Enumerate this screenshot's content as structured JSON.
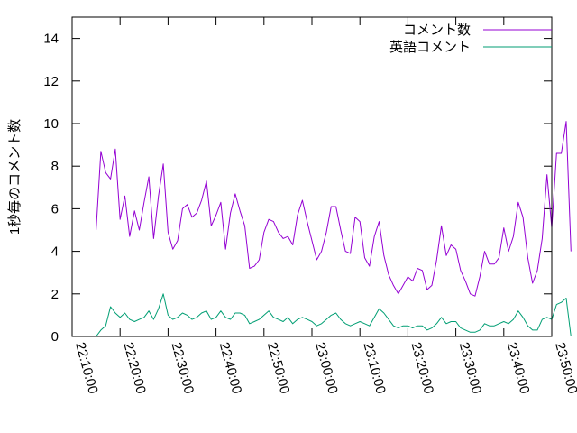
{
  "chart_data": {
    "type": "line",
    "title": "",
    "xlabel": "",
    "ylabel": "1秒毎のコメント数",
    "ylim": [
      0,
      15
    ],
    "xlim": [
      "22:10:00",
      "23:50:00"
    ],
    "yticks": [
      0,
      2,
      4,
      6,
      8,
      10,
      12,
      14
    ],
    "xticks": [
      "22:10:00",
      "22:20:00",
      "22:30:00",
      "22:40:00",
      "22:50:00",
      "23:00:00",
      "23:10:00",
      "23:20:00",
      "23:30:00",
      "23:40:00",
      "23:50:00"
    ],
    "grid": false,
    "legend_position": "top-right",
    "x_interval": "1 minute",
    "series": [
      {
        "name": "コメント数",
        "color": "#9400d3",
        "x_start": "22:15:00",
        "values": [
          5.0,
          8.7,
          7.7,
          7.4,
          8.8,
          5.5,
          6.6,
          4.7,
          5.9,
          5.0,
          6.3,
          7.5,
          4.6,
          6.6,
          8.1,
          4.9,
          4.1,
          4.5,
          6.0,
          6.2,
          5.6,
          5.8,
          6.4,
          7.3,
          5.2,
          5.7,
          6.3,
          4.1,
          5.8,
          6.7,
          5.9,
          5.2,
          3.2,
          3.3,
          3.6,
          4.9,
          5.5,
          5.4,
          4.9,
          4.6,
          4.7,
          4.3,
          5.7,
          6.4,
          5.4,
          4.5,
          3.6,
          4.0,
          4.9,
          6.1,
          6.1,
          5.0,
          4.0,
          3.9,
          5.6,
          5.4,
          3.7,
          3.3,
          4.7,
          5.4,
          3.8,
          2.9,
          2.4,
          2.0,
          2.4,
          2.8,
          2.6,
          3.2,
          3.1,
          2.2,
          2.4,
          3.6,
          5.2,
          3.8,
          4.3,
          4.1,
          3.1,
          2.6,
          2.0,
          1.9,
          2.8,
          4.0,
          3.4,
          3.4,
          3.7,
          5.1,
          4.0,
          4.7,
          6.3,
          5.6,
          3.7,
          2.5,
          3.1,
          4.6,
          7.6,
          5.1,
          8.6,
          8.6,
          10.1,
          4.0
        ]
      },
      {
        "name": "英語コメント",
        "color": "#009e73",
        "x_start": "22:15:00",
        "values": [
          0.0,
          0.3,
          0.5,
          1.4,
          1.1,
          0.9,
          1.1,
          0.8,
          0.7,
          0.8,
          0.9,
          1.2,
          0.8,
          1.3,
          2.0,
          1.0,
          0.8,
          0.9,
          1.1,
          1.0,
          0.8,
          0.9,
          1.1,
          1.2,
          0.8,
          0.9,
          1.2,
          0.9,
          0.8,
          1.1,
          1.1,
          1.0,
          0.6,
          0.7,
          0.8,
          1.0,
          1.2,
          0.9,
          0.8,
          0.7,
          0.9,
          0.6,
          0.8,
          0.9,
          0.8,
          0.7,
          0.5,
          0.6,
          0.8,
          1.0,
          1.1,
          0.8,
          0.6,
          0.5,
          0.6,
          0.7,
          0.6,
          0.5,
          0.9,
          1.3,
          1.1,
          0.8,
          0.5,
          0.4,
          0.5,
          0.5,
          0.4,
          0.5,
          0.5,
          0.3,
          0.4,
          0.6,
          0.9,
          0.6,
          0.7,
          0.7,
          0.4,
          0.3,
          0.2,
          0.2,
          0.3,
          0.6,
          0.5,
          0.5,
          0.6,
          0.7,
          0.6,
          0.8,
          1.2,
          0.9,
          0.5,
          0.3,
          0.3,
          0.8,
          0.9,
          0.8,
          1.5,
          1.6,
          1.8,
          0.0
        ]
      }
    ]
  }
}
